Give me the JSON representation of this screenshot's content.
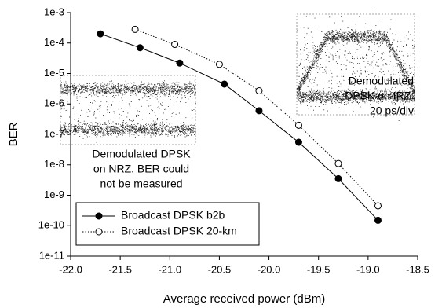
{
  "chart_data": {
    "type": "line",
    "xlabel": "Average received power (dBm)",
    "ylabel": "BER",
    "xlim": [
      -22.0,
      -18.5
    ],
    "ylim": [
      1e-11,
      0.001
    ],
    "log_y": true,
    "legend": "lower left",
    "xticks": [
      {
        "value": -22.0,
        "label": "-22.0"
      },
      -21.5,
      {
        "value": -21.0,
        "label": "-21.0"
      },
      -20.5,
      {
        "value": -20.0,
        "label": "-20.0"
      },
      -19.5,
      {
        "value": -19.0,
        "label": "-19.0"
      },
      -18.5
    ],
    "yticks": [
      {
        "value": 1e-11,
        "label": "1e-11"
      },
      {
        "value": 1e-10,
        "label": "1e-10"
      },
      {
        "value": 1e-09,
        "label": "1e-9"
      },
      {
        "value": 1e-08,
        "label": "1e-8"
      },
      {
        "value": 1e-07,
        "label": "1e-7"
      },
      {
        "value": 1e-06,
        "label": "1e-6"
      },
      {
        "value": 1e-05,
        "label": "1e-5"
      },
      {
        "value": 0.0001,
        "label": "1e-4"
      },
      {
        "value": 0.001,
        "label": "1e-3"
      }
    ],
    "series": [
      {
        "name": "Broadcast DPSK b2b",
        "color": "#000000",
        "marker": "filled",
        "linestyle": "solid",
        "x": [
          -21.7,
          -21.3,
          -20.9,
          -20.45,
          -20.1,
          -19.7,
          -19.3,
          -18.9
        ],
        "values": [
          0.0002,
          7e-05,
          2.2e-05,
          4.5e-06,
          6e-07,
          5.5e-08,
          3.5e-09,
          1.5e-10
        ]
      },
      {
        "name": "Broadcast DPSK 20-km",
        "color": "#000000",
        "marker": "open",
        "linestyle": "dotted",
        "x": [
          -21.35,
          -20.95,
          -20.5,
          -20.1,
          -19.7,
          -19.3,
          -18.9
        ],
        "values": [
          0.00028,
          9e-05,
          2e-05,
          2.7e-06,
          2e-07,
          1.1e-08,
          4.5e-10
        ]
      }
    ],
    "annotations": [
      [
        "Demodulated DPSK",
        "on NRZ. BER could",
        "not be measured"
      ],
      [
        "Demodulated",
        "DPSK on IRZ.",
        "20 ps/div"
      ]
    ]
  }
}
